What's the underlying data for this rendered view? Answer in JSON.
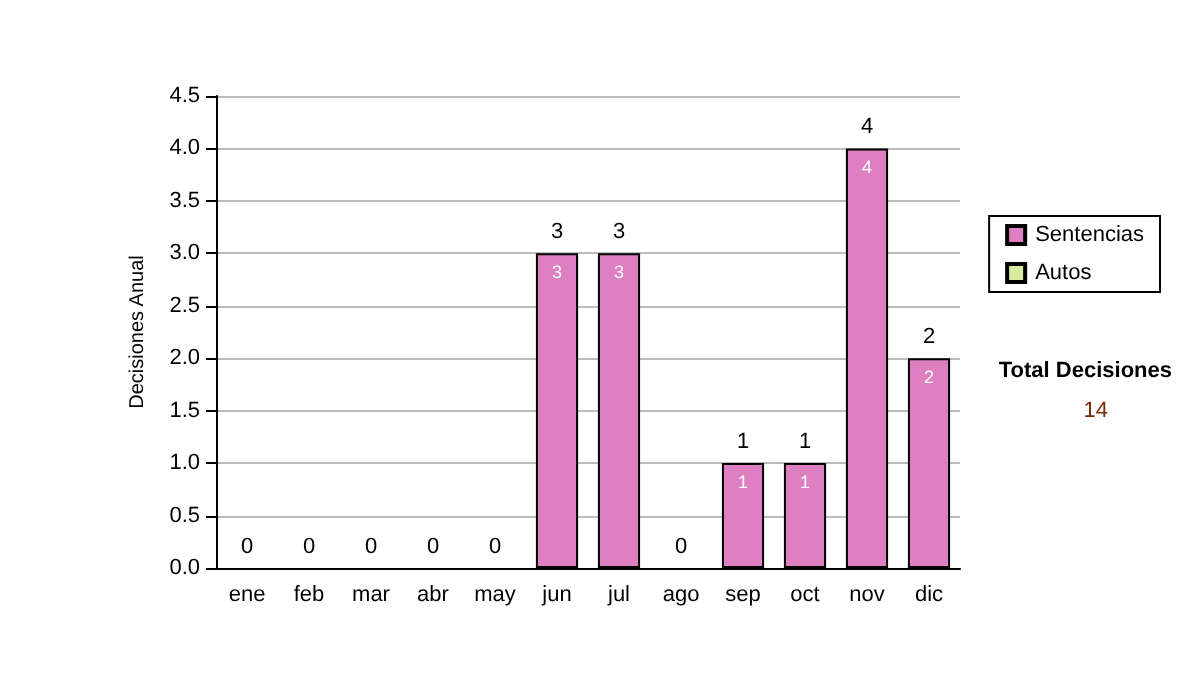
{
  "chart_data": {
    "type": "bar",
    "stacked": true,
    "ylabel": "Decisiones Anual",
    "categories": [
      "ene",
      "feb",
      "mar",
      "abr",
      "may",
      "jun",
      "jul",
      "ago",
      "sep",
      "oct",
      "nov",
      "dic"
    ],
    "series": [
      {
        "name": "Sentencias",
        "color": "#dd7fc0",
        "values": [
          0,
          0,
          0,
          0,
          0,
          3,
          3,
          0,
          1,
          1,
          4,
          2
        ],
        "value_labels": [
          null,
          null,
          null,
          null,
          null,
          "3",
          "3",
          null,
          "1",
          "1",
          "4",
          "2"
        ]
      },
      {
        "name": "Autos",
        "color": "#d8eca0",
        "values": [
          0,
          0,
          0,
          0,
          0,
          0,
          0,
          0,
          0,
          0,
          0,
          0
        ]
      }
    ],
    "totals": [
      "0",
      "0",
      "0",
      "0",
      "0",
      "3",
      "3",
      "0",
      "1",
      "1",
      "4",
      "2"
    ],
    "ylim": [
      0,
      4.5
    ],
    "yticks": [
      {
        "value": 0,
        "label": "0.0"
      },
      {
        "value": 0.5,
        "label": "0.5"
      },
      {
        "value": 1,
        "label": "1.0"
      },
      {
        "value": 1.5,
        "label": "1.5"
      },
      {
        "value": 2,
        "label": "2.0"
      },
      {
        "value": 2.5,
        "label": "2.5"
      },
      {
        "value": 3,
        "label": "3.0"
      },
      {
        "value": 3.5,
        "label": "3.5"
      },
      {
        "value": 4,
        "label": "4.0"
      },
      {
        "value": 4.5,
        "label": "4.5"
      }
    ],
    "grid": "y",
    "legend": "right",
    "annotations": [
      "Total Decisiones",
      "14"
    ]
  }
}
